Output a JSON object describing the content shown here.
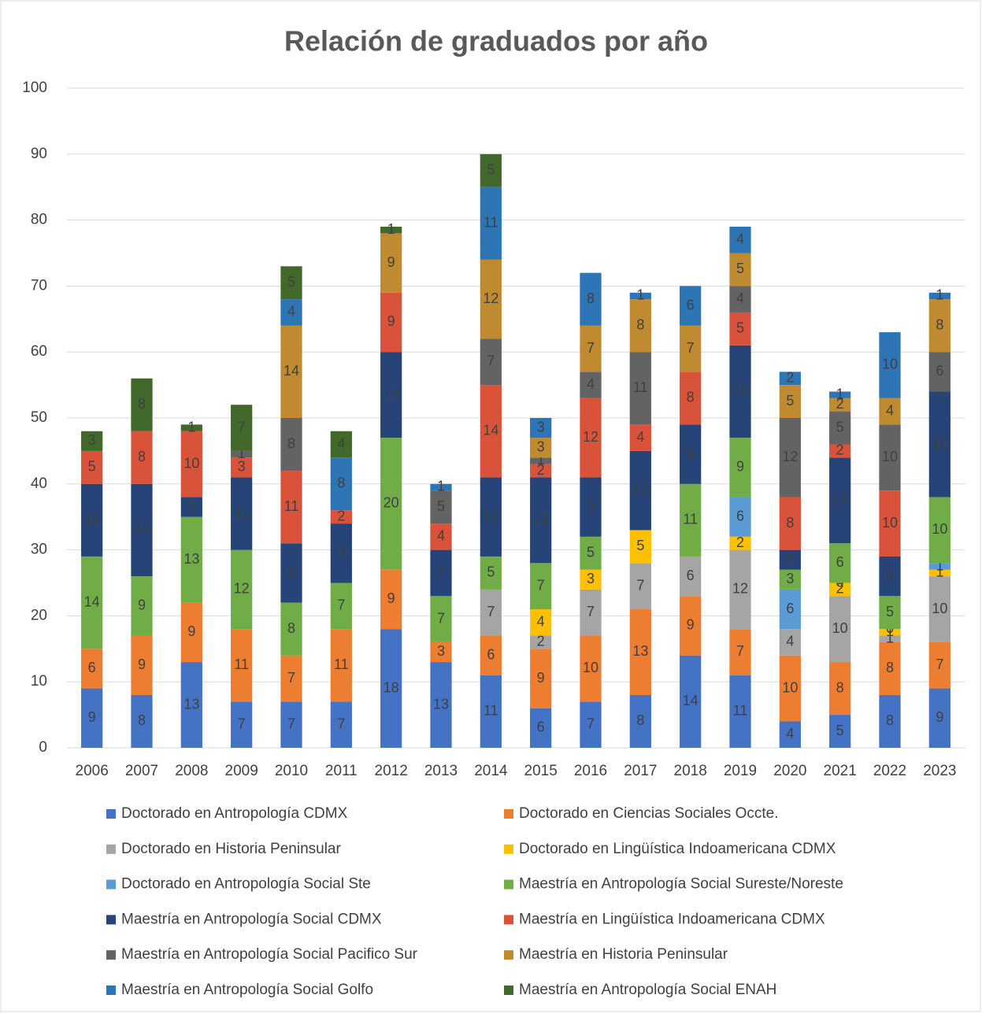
{
  "chart_data": {
    "type": "stacked_bar",
    "title": "Relación de graduados por año",
    "categories": [
      "2006",
      "2007",
      "2008",
      "2009",
      "2010",
      "2011",
      "2012",
      "2013",
      "2014",
      "2015",
      "2016",
      "2017",
      "2018",
      "2019",
      "2020",
      "2021",
      "2022",
      "2023"
    ],
    "ylim": [
      0,
      100
    ],
    "yticks": [
      0,
      10,
      20,
      30,
      40,
      50,
      60,
      70,
      80,
      90,
      100
    ],
    "grid": true,
    "legend": "bottom",
    "series": [
      {
        "name": "Doctorado en Antropología CDMX",
        "color": "#4472c4",
        "values": [
          9,
          8,
          13,
          7,
          7,
          7,
          18,
          13,
          11,
          6,
          7,
          8,
          14,
          11,
          4,
          5,
          8,
          9
        ]
      },
      {
        "name": "Doctorado en Ciencias Sociales Occte.",
        "color": "#ed7d31",
        "values": [
          6,
          9,
          9,
          11,
          7,
          11,
          9,
          3,
          6,
          9,
          10,
          13,
          9,
          7,
          10,
          8,
          8,
          7
        ]
      },
      {
        "name": "Doctorado en Historia Peninsular",
        "color": "#a5a5a5",
        "values": [
          null,
          null,
          null,
          null,
          null,
          null,
          null,
          null,
          7,
          2,
          7,
          7,
          6,
          12,
          4,
          10,
          1,
          10
        ]
      },
      {
        "name": "Doctorado en Lingüística Indoamericana CDMX",
        "color": "#ffc000",
        "values": [
          null,
          null,
          null,
          null,
          null,
          null,
          null,
          null,
          null,
          4,
          3,
          5,
          null,
          2,
          null,
          2,
          1,
          1
        ]
      },
      {
        "name": "Doctorado en Antropología Social Ste",
        "color": "#5b9bd5",
        "values": [
          null,
          null,
          null,
          null,
          null,
          null,
          null,
          null,
          null,
          null,
          null,
          null,
          null,
          6,
          6,
          0,
          0,
          1
        ]
      },
      {
        "name": "Maestría en Antropología Social Sureste/Noreste",
        "color": "#70ad47",
        "values": [
          14,
          9,
          13,
          12,
          8,
          7,
          20,
          7,
          5,
          7,
          5,
          null,
          11,
          9,
          3,
          6,
          5,
          10
        ]
      },
      {
        "name": "Maestría en Antropología Social CDMX",
        "color": "#264478",
        "values": [
          11,
          14,
          3,
          11,
          9,
          9,
          13,
          7,
          12,
          13,
          9,
          12,
          9,
          14,
          3,
          13,
          6,
          16
        ]
      },
      {
        "name": "Maestría en Lingüística Indoamericana CDMX",
        "color": "#d9533b",
        "values": [
          5,
          8,
          10,
          3,
          11,
          2,
          9,
          4,
          14,
          2,
          12,
          4,
          8,
          5,
          8,
          2,
          10,
          0
        ]
      },
      {
        "name": "Maestría en Antropología Social Pacifico Sur",
        "color": "#636363",
        "values": [
          null,
          null,
          null,
          1,
          8,
          null,
          null,
          5,
          7,
          1,
          4,
          11,
          null,
          4,
          12,
          5,
          10,
          6
        ]
      },
      {
        "name": "Maestría en Historia Peninsular",
        "color": "#c08a30",
        "values": [
          null,
          null,
          null,
          null,
          14,
          null,
          9,
          null,
          12,
          3,
          7,
          8,
          7,
          5,
          5,
          2,
          4,
          8
        ]
      },
      {
        "name": "Maestría en Antropología Social Golfo",
        "color": "#2e75b6",
        "values": [
          null,
          null,
          null,
          null,
          4,
          8,
          null,
          1,
          11,
          3,
          8,
          1,
          6,
          4,
          2,
          1,
          10,
          1
        ]
      },
      {
        "name": "Maestría en Antropología Social ENAH",
        "color": "#43682b",
        "values": [
          3,
          8,
          1,
          7,
          5,
          4,
          1,
          null,
          5,
          null,
          null,
          null,
          null,
          null,
          null,
          null,
          null,
          null
        ]
      }
    ]
  }
}
